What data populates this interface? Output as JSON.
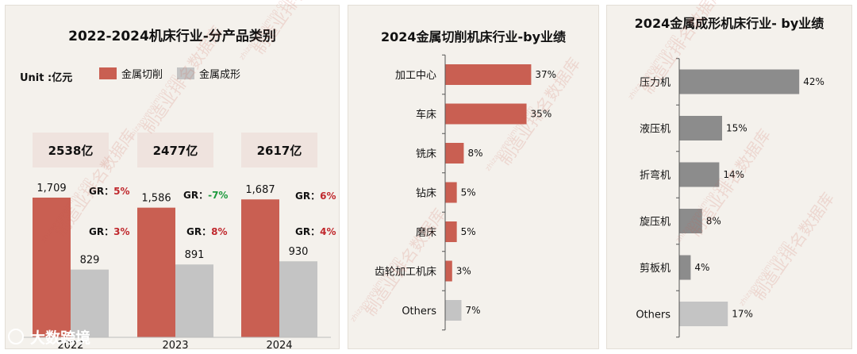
{
  "chart_data": [
    {
      "type": "bar",
      "title": "2022-2024机床行业-分产品类别",
      "unit_label": "Unit :亿元",
      "categories": [
        "2022",
        "2023",
        "2024"
      ],
      "series": [
        {
          "name": "金属切削",
          "color": "#c95f52",
          "values": [
            1709,
            1586,
            1687
          ],
          "value_labels": [
            "1,709",
            "1,586",
            "1,687"
          ]
        },
        {
          "name": "金属成形",
          "color": "#c4c4c4",
          "values": [
            829,
            891,
            930
          ],
          "value_labels": [
            "829",
            "891",
            "930"
          ]
        }
      ],
      "totals": [
        "2538亿",
        "2477亿",
        "2617亿"
      ],
      "growth_prefix": "GR：",
      "growth_cutting": [
        "5%",
        "-7%",
        "6%"
      ],
      "growth_forming": [
        "3%",
        "8%",
        "4%"
      ],
      "growth_colors": {
        "positive": "#c0282d",
        "negative": "#1e9a3e"
      }
    },
    {
      "type": "bar",
      "orientation": "horizontal",
      "title": "2024金属切削机床行业-by业绩",
      "categories": [
        "加工中心",
        "车床",
        "铣床",
        "钻床",
        "磨床",
        "齿轮加工机床",
        "Others"
      ],
      "values": [
        37,
        35,
        8,
        5,
        5,
        3,
        7
      ],
      "value_labels": [
        "37%",
        "35%",
        "8%",
        "5%",
        "5%",
        "3%",
        "7%"
      ],
      "colors": {
        "main": "#c95f52",
        "others": "#c4c4c4"
      }
    },
    {
      "type": "bar",
      "orientation": "horizontal",
      "title": "2024金属成形机床行业- by业绩",
      "categories": [
        "压力机",
        "液压机",
        "折弯机",
        "旋压机",
        "剪板机",
        "Others"
      ],
      "values": [
        42,
        15,
        14,
        8,
        4,
        17
      ],
      "value_labels": [
        "42%",
        "15%",
        "14%",
        "8%",
        "4%",
        "17%"
      ],
      "colors": {
        "main": "#8c8c8c",
        "others": "#c4c4c4"
      }
    }
  ],
  "watermark": {
    "text": "制造业排名数据库",
    "site": "zhizaoyepaiming.com",
    "logo_text": "大数跨境"
  }
}
